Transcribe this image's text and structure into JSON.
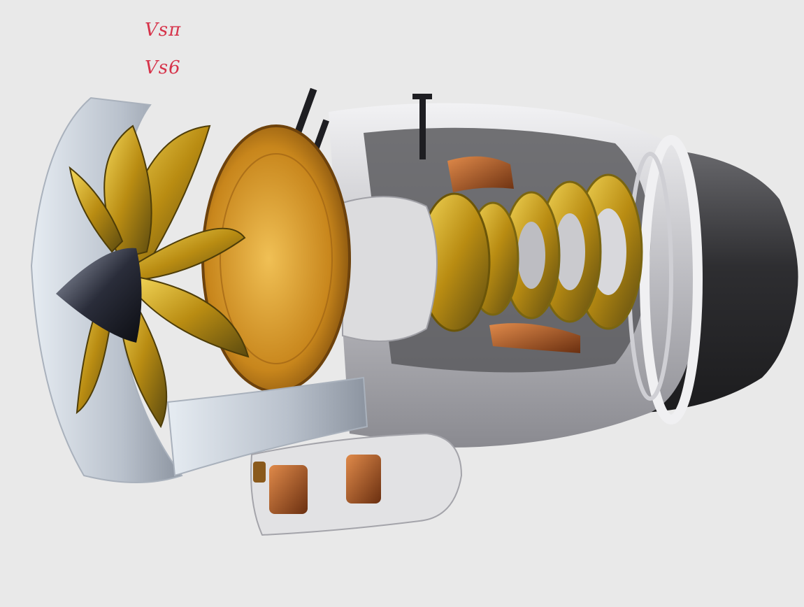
{
  "annotations": [
    {
      "text": "Vsπ"
    },
    {
      "text": "Vs6"
    }
  ],
  "colors": {
    "background": "#e9e9e9",
    "annotation_ink": "#d6334a",
    "fan_gold": "#b98c12",
    "casing_silver": "#c8c8cc",
    "copper": "#a8521d",
    "nozzle_dark": "#3a3a3c"
  },
  "illustration": {
    "subject": "jet-engine-cutaway-icon"
  }
}
